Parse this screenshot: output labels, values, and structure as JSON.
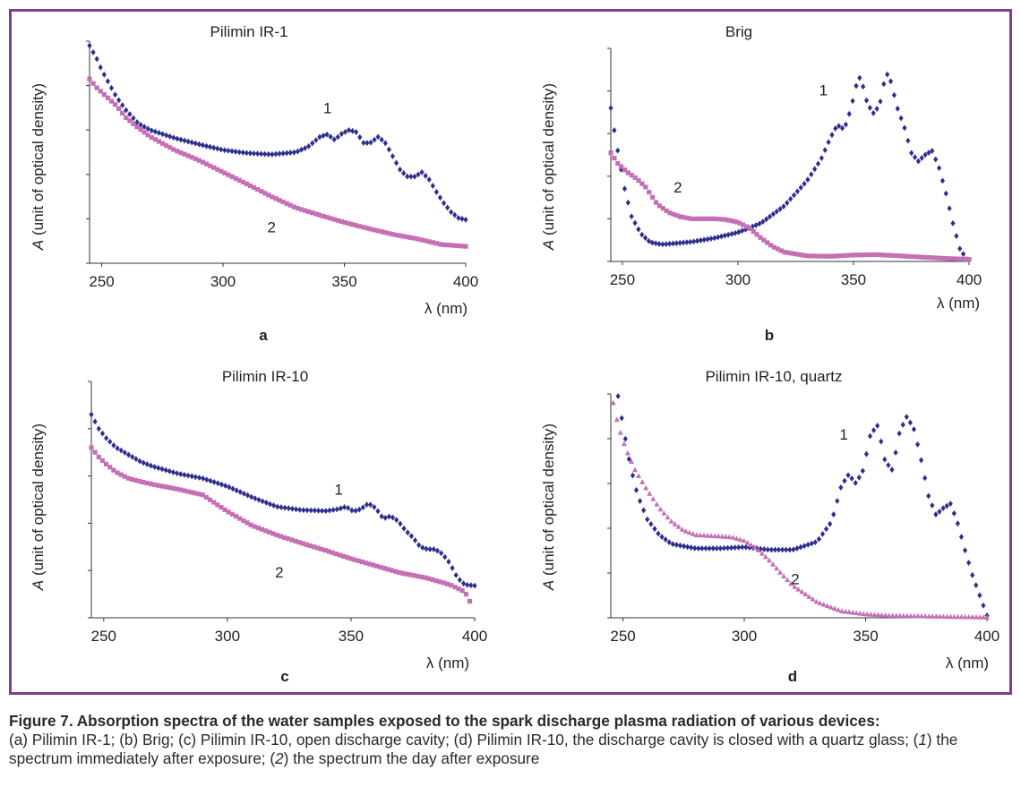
{
  "figure": {
    "caption_title": "Figure 7. Absorption spectra of the water samples exposed to the spark discharge plasma radiation of various devices:",
    "caption_parts": [
      {
        "text": "(a) Pilimin IR-1; (b) Brig; (c) Pilimin IR-10, open discharge cavity; (d) Pilimin IR-10, the discharge cavity is closed with a quartz glass; (",
        "italic": false
      },
      {
        "text": "1",
        "italic": true
      },
      {
        "text": ") the spectrum immediately after exposure; (",
        "italic": false
      },
      {
        "text": "2",
        "italic": true
      },
      {
        "text": ") the spectrum the day after exposure",
        "italic": false
      }
    ]
  },
  "series_colors": {
    "1": "#2e2e8f",
    "2": "#c56fb4"
  },
  "chart_data": [
    {
      "type": "scatter",
      "panel": "a",
      "title": "Pilimin IR-1",
      "xlabel": "λ (nm)",
      "ylabel_italic": "A",
      "ylabel_rest": " (unit of optical density)",
      "xlim": [
        245,
        400
      ],
      "ylim": [
        0,
        5
      ],
      "xticks": [
        250,
        300,
        350,
        400
      ],
      "y_tick_count": 5,
      "series": [
        {
          "name": "1",
          "marker": "diamond",
          "label_at": [
            343,
            3.38
          ],
          "x": [
            245,
            248,
            250,
            253,
            256,
            260,
            265,
            270,
            280,
            290,
            300,
            310,
            320,
            330,
            335,
            340,
            343,
            346,
            349,
            352,
            355,
            358,
            361,
            364,
            367,
            370,
            373,
            376,
            379,
            382,
            385,
            388,
            391,
            394,
            397,
            400
          ],
          "y": [
            4.9,
            4.6,
            4.35,
            4.05,
            3.75,
            3.45,
            3.15,
            3.0,
            2.82,
            2.68,
            2.55,
            2.48,
            2.45,
            2.5,
            2.62,
            2.85,
            2.9,
            2.78,
            2.92,
            3.0,
            2.95,
            2.7,
            2.72,
            2.85,
            2.7,
            2.4,
            2.1,
            1.95,
            1.95,
            2.05,
            1.88,
            1.6,
            1.35,
            1.15,
            1.02,
            0.98
          ]
        },
        {
          "name": "2",
          "marker": "square",
          "label_at": [
            320,
            0.7
          ],
          "x": [
            245,
            248,
            252,
            256,
            260,
            265,
            270,
            280,
            290,
            300,
            310,
            320,
            330,
            340,
            350,
            360,
            370,
            380,
            390,
            400
          ],
          "y": [
            4.15,
            3.95,
            3.75,
            3.55,
            3.28,
            3.05,
            2.85,
            2.55,
            2.32,
            2.05,
            1.78,
            1.5,
            1.25,
            1.08,
            0.92,
            0.78,
            0.65,
            0.55,
            0.42,
            0.38
          ]
        }
      ]
    },
    {
      "type": "scatter",
      "panel": "b",
      "title": "Brig",
      "xlabel": "λ (nm)",
      "ylabel_italic": "A",
      "ylabel_rest": " (unit of optical density)",
      "xlim": [
        245,
        400
      ],
      "ylim": [
        0,
        5
      ],
      "xticks": [
        250,
        300,
        350,
        400
      ],
      "y_tick_count": 5,
      "series": [
        {
          "name": "1",
          "marker": "diamond",
          "label_at": [
            337,
            3.9
          ],
          "x": [
            245,
            247,
            249,
            251,
            254,
            258,
            262,
            267,
            272,
            280,
            290,
            300,
            310,
            320,
            330,
            336,
            340,
            343,
            346,
            349,
            351,
            353,
            356,
            359,
            362,
            364,
            366,
            369,
            372,
            375,
            378,
            381,
            384,
            387,
            390,
            393,
            396,
            399
          ],
          "y": [
            3.6,
            2.9,
            2.3,
            1.7,
            1.05,
            0.65,
            0.45,
            0.4,
            0.42,
            0.46,
            0.55,
            0.68,
            0.9,
            1.3,
            1.9,
            2.4,
            2.9,
            3.2,
            3.1,
            3.6,
            4.1,
            4.35,
            3.7,
            3.45,
            3.8,
            4.45,
            4.25,
            3.6,
            3.15,
            2.55,
            2.35,
            2.5,
            2.6,
            2.2,
            1.6,
            0.9,
            0.3,
            0.05
          ]
        },
        {
          "name": "2",
          "marker": "square",
          "label_at": [
            274,
            1.62
          ],
          "x": [
            245,
            248,
            252,
            256,
            260,
            265,
            270,
            275,
            280,
            290,
            295,
            300,
            305,
            310,
            315,
            320,
            330,
            340,
            350,
            360,
            370,
            380,
            390,
            400
          ],
          "y": [
            2.55,
            2.3,
            2.1,
            1.95,
            1.75,
            1.35,
            1.15,
            1.05,
            1.0,
            1.0,
            0.98,
            0.92,
            0.78,
            0.55,
            0.35,
            0.22,
            0.13,
            0.12,
            0.15,
            0.16,
            0.13,
            0.1,
            0.07,
            0.05
          ]
        }
      ]
    },
    {
      "type": "scatter",
      "panel": "c",
      "title": "Pilimin IR-10",
      "xlabel": "λ (nm)",
      "ylabel_italic": "A",
      "ylabel_rest": " (unit of optical density)",
      "xlim": [
        245,
        400
      ],
      "ylim": [
        0,
        5
      ],
      "xticks": [
        250,
        300,
        350,
        400
      ],
      "y_tick_count": 5,
      "series": [
        {
          "name": "1",
          "marker": "diamond",
          "label_at": [
            345,
            2.6
          ],
          "x": [
            245,
            248,
            251,
            255,
            260,
            265,
            270,
            280,
            290,
            300,
            310,
            320,
            330,
            340,
            345,
            348,
            351,
            354,
            357,
            360,
            363,
            366,
            369,
            372,
            375,
            378,
            381,
            384,
            387,
            390,
            393,
            396,
            400
          ],
          "y": [
            4.3,
            4.0,
            3.8,
            3.6,
            3.45,
            3.3,
            3.2,
            3.05,
            2.95,
            2.78,
            2.55,
            2.35,
            2.28,
            2.26,
            2.3,
            2.35,
            2.25,
            2.3,
            2.42,
            2.32,
            2.1,
            2.15,
            2.05,
            1.85,
            1.7,
            1.5,
            1.45,
            1.45,
            1.35,
            1.15,
            0.85,
            0.7,
            0.68
          ]
        },
        {
          "name": "2",
          "marker": "square",
          "label_at": [
            321,
            0.85
          ],
          "x": [
            245,
            248,
            251,
            255,
            260,
            265,
            270,
            280,
            290,
            300,
            310,
            320,
            330,
            340,
            350,
            360,
            370,
            380,
            390,
            396,
            398
          ],
          "y": [
            3.6,
            3.4,
            3.25,
            3.08,
            2.95,
            2.88,
            2.82,
            2.72,
            2.6,
            2.25,
            1.95,
            1.75,
            1.58,
            1.42,
            1.25,
            1.1,
            0.95,
            0.85,
            0.7,
            0.55,
            0.35
          ]
        }
      ]
    },
    {
      "type": "scatter",
      "panel": "d",
      "title": "Pilimin IR-10, quartz",
      "xlabel": "λ (nm)",
      "ylabel_italic": "A",
      "ylabel_rest": " (unit of optical density)",
      "xlim": [
        245,
        400
      ],
      "ylim": [
        0,
        5
      ],
      "xticks": [
        250,
        300,
        350,
        400
      ],
      "y_tick_count": 5,
      "series": [
        {
          "name": "1",
          "marker": "diamond",
          "label_at": [
            341,
            3.98
          ],
          "x": [
            248,
            250,
            253,
            256,
            260,
            265,
            270,
            280,
            290,
            300,
            310,
            320,
            330,
            336,
            340,
            343,
            346,
            349,
            352,
            355,
            358,
            361,
            364,
            367,
            370,
            373,
            376,
            379,
            382,
            385,
            388,
            391,
            394,
            397,
            400
          ],
          "y": [
            4.95,
            4.3,
            3.4,
            2.75,
            2.2,
            1.85,
            1.65,
            1.55,
            1.55,
            1.58,
            1.52,
            1.52,
            1.7,
            2.15,
            2.95,
            3.2,
            3.0,
            3.3,
            4.1,
            4.3,
            3.5,
            3.3,
            4.15,
            4.5,
            4.2,
            3.5,
            2.7,
            2.3,
            2.45,
            2.55,
            2.1,
            1.5,
            0.95,
            0.5,
            0.05
          ]
        },
        {
          "name": "2",
          "marker": "triangle",
          "label_at": [
            321,
            0.75
          ],
          "x": [
            246,
            248,
            251,
            255,
            260,
            265,
            270,
            275,
            280,
            290,
            295,
            300,
            305,
            310,
            315,
            320,
            330,
            340,
            350,
            360,
            370,
            380,
            390,
            400
          ],
          "y": [
            4.8,
            4.3,
            3.8,
            3.3,
            2.85,
            2.45,
            2.15,
            1.95,
            1.85,
            1.82,
            1.8,
            1.72,
            1.55,
            1.3,
            1.0,
            0.72,
            0.35,
            0.15,
            0.08,
            0.05,
            0.04,
            0.03,
            0.02,
            0.01
          ]
        }
      ]
    }
  ]
}
